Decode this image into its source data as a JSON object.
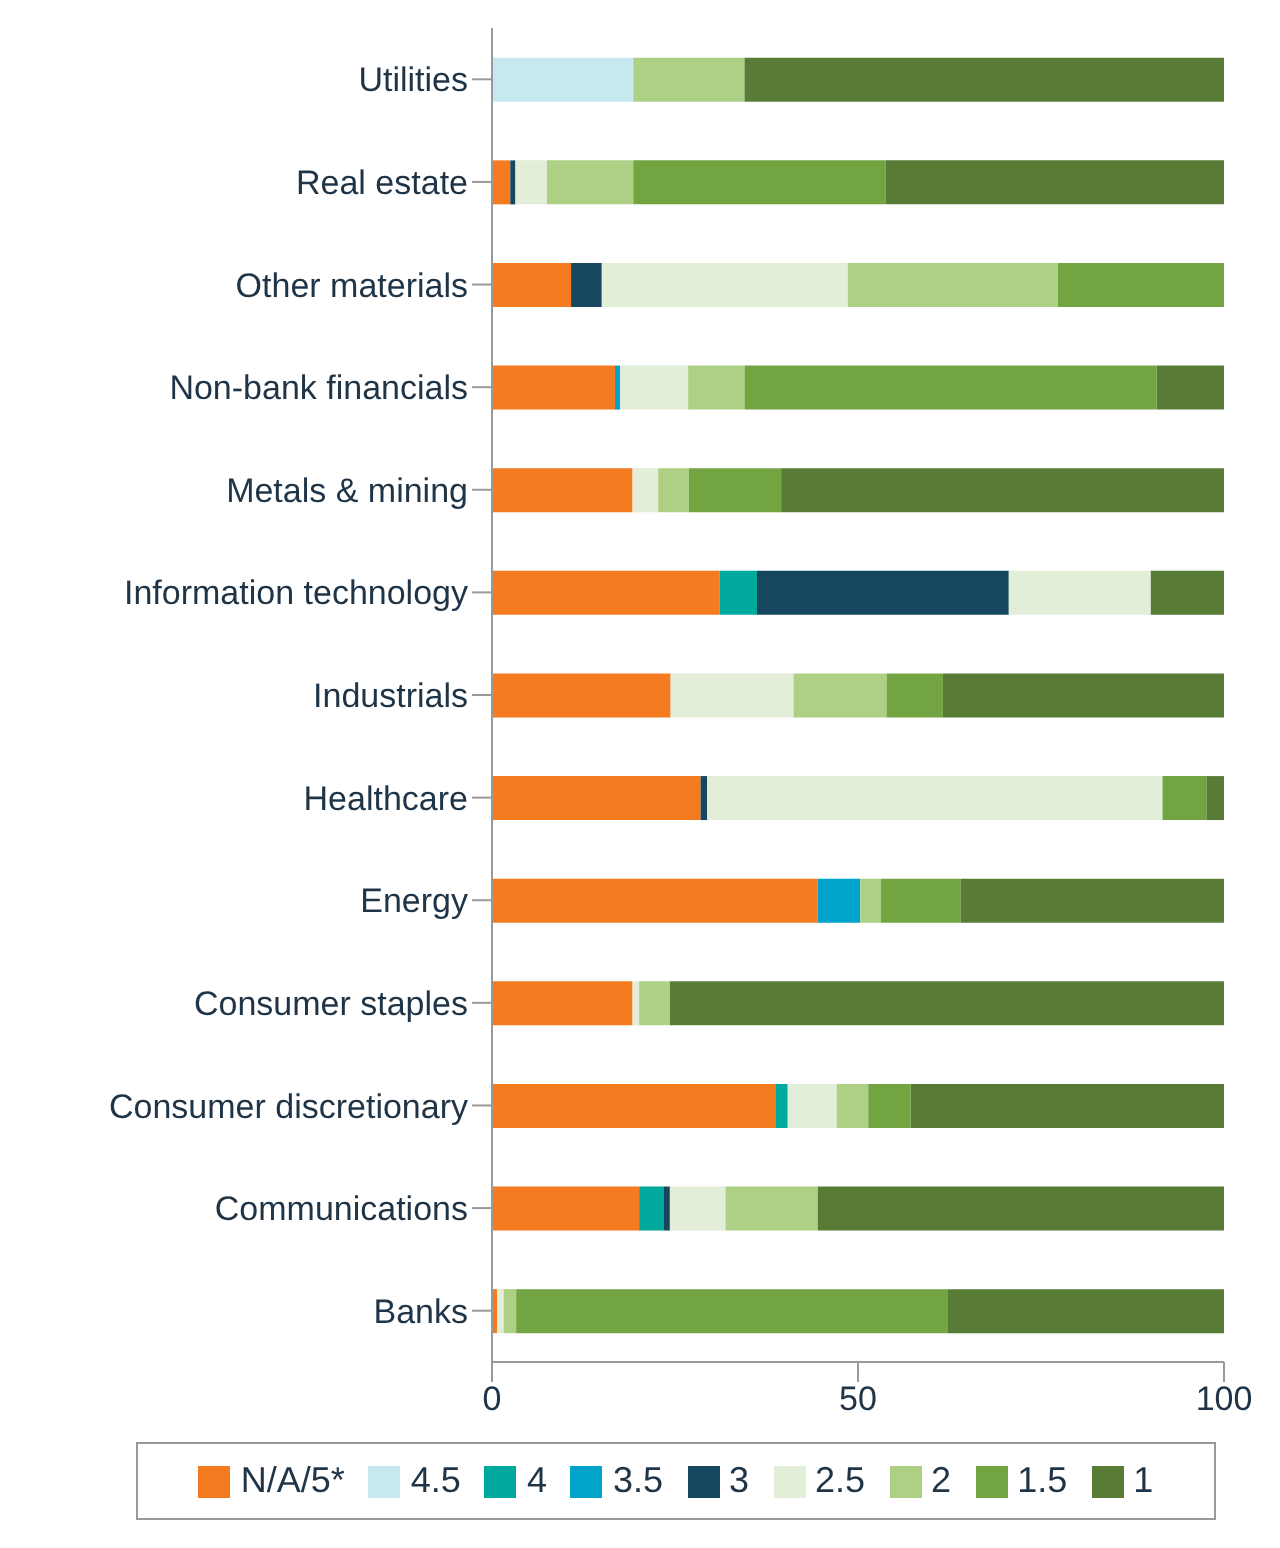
{
  "chart_data": {
    "type": "bar",
    "orientation": "horizontal",
    "stacked": true,
    "categories": [
      "Utilities",
      "Real estate",
      "Other materials",
      "Non-bank financials",
      "Metals & mining",
      "Information technology",
      "Industrials",
      "Healthcare",
      "Energy",
      "Consumer staples",
      "Consumer discretionary",
      "Communications",
      "Banks"
    ],
    "series": [
      {
        "name": "N/A/5*",
        "color": "#f47b20",
        "values": [
          0,
          2.5,
          10.8,
          16.8,
          19.2,
          31.1,
          24.4,
          28.5,
          44.5,
          19.2,
          38.7,
          20.1,
          0.7
        ]
      },
      {
        "name": "4.5",
        "color": "#c6e8f0",
        "values": [
          19.3,
          0,
          0,
          0,
          0,
          0,
          0,
          0,
          0,
          0,
          0,
          0,
          0
        ]
      },
      {
        "name": "4",
        "color": "#00a99d",
        "values": [
          0,
          0,
          0,
          0,
          0,
          5.1,
          0,
          0,
          0,
          0,
          1.7,
          3.4,
          0
        ]
      },
      {
        "name": "3.5",
        "color": "#00a3cc",
        "values": [
          0,
          0,
          0,
          0.7,
          0,
          0,
          0,
          0,
          5.8,
          0,
          0,
          0,
          0
        ]
      },
      {
        "name": "3",
        "color": "#17475f",
        "values": [
          0,
          0.7,
          4.2,
          0,
          0,
          34.4,
          0,
          0.9,
          0,
          0,
          0,
          0.8,
          0
        ]
      },
      {
        "name": "2.5",
        "color": "#e2eed8",
        "values": [
          0,
          4.3,
          33.6,
          9.3,
          3.5,
          19.4,
          16.8,
          62.2,
          0,
          0.9,
          6.7,
          7.6,
          0.9
        ]
      },
      {
        "name": "2",
        "color": "#add085",
        "values": [
          15.2,
          11.8,
          28.7,
          7.7,
          4.2,
          0,
          12.7,
          0,
          2.8,
          4.2,
          4.3,
          12.6,
          1.7
        ]
      },
      {
        "name": "1.5",
        "color": "#72a442",
        "values": [
          0,
          34.5,
          22.7,
          56.3,
          12.6,
          0,
          7.7,
          6.0,
          10.9,
          0,
          5.8,
          0,
          58.9
        ]
      },
      {
        "name": "1",
        "color": "#587c36",
        "values": [
          65.5,
          46.2,
          0,
          9.2,
          60.5,
          10.0,
          38.4,
          2.4,
          36.0,
          75.7,
          42.8,
          55.5,
          37.8
        ]
      }
    ],
    "xlim": [
      0,
      100
    ],
    "xticks": [
      0,
      50,
      100
    ],
    "legend": "bottom"
  }
}
